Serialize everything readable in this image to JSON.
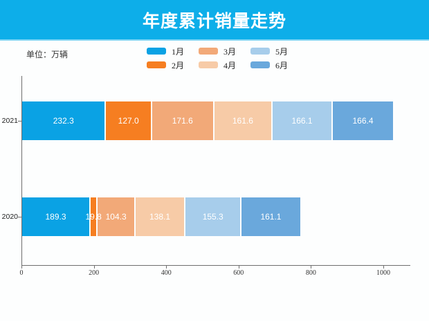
{
  "header": {
    "title": "年度累计销量走势",
    "bg_color": "#0daee9"
  },
  "unit_label": "单位：万辆",
  "chart_data": {
    "type": "bar",
    "orientation": "horizontal",
    "stacked": true,
    "title": "年度累计销量走势",
    "unit": "万辆",
    "categories": [
      "2021",
      "2020"
    ],
    "series": [
      {
        "name": "1月",
        "color": "#0aa2e4",
        "values": [
          232.3,
          189.3
        ]
      },
      {
        "name": "2月",
        "color": "#f67e21",
        "values": [
          127.0,
          19.8
        ]
      },
      {
        "name": "3月",
        "color": "#f2a978",
        "values": [
          171.6,
          104.3
        ]
      },
      {
        "name": "4月",
        "color": "#f7cba7",
        "values": [
          161.6,
          138.1
        ]
      },
      {
        "name": "5月",
        "color": "#a7cdeb",
        "values": [
          166.1,
          155.3
        ]
      },
      {
        "name": "6月",
        "color": "#6aa8dc",
        "values": [
          166.4,
          161.1
        ]
      }
    ],
    "totals": [
      1025.0,
      767.9
    ],
    "x_ticks": [
      0,
      200,
      400,
      600,
      800,
      1000
    ],
    "xlim": [
      0,
      1075
    ],
    "value_labels": true,
    "legend_position": "top",
    "grid": false,
    "axis_color": "#6e6e6e"
  }
}
